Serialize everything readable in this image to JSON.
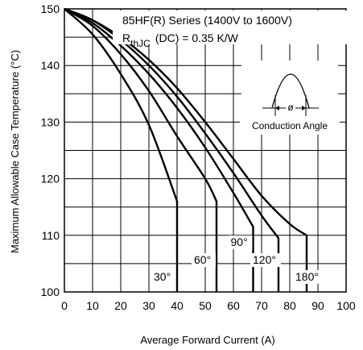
{
  "chart_data": {
    "type": "line",
    "title_line1": "85HF(R) Series (1400V to 1600V)",
    "title_line2_main": "R",
    "title_line2_sub": "thJC",
    "title_line2_rest": "(DC) = 0.35 K/W",
    "xlabel": "Average Forward Current (A)",
    "ylabel": "Maximum Allowable Case Temperature (°C)",
    "xlim": [
      0,
      100
    ],
    "ylim": [
      100,
      150
    ],
    "xticks": [
      "0",
      "10",
      "20",
      "30",
      "40",
      "50",
      "60",
      "70",
      "80",
      "90",
      "100"
    ],
    "yticks": [
      "100",
      "110",
      "120",
      "130",
      "140",
      "150"
    ],
    "grid": true,
    "inset_label": "Conduction Angle",
    "inset_symbol": "ø",
    "series": [
      {
        "name": "30°",
        "points": [
          [
            0,
            150
          ],
          [
            10,
            145.5
          ],
          [
            20,
            138.5
          ],
          [
            30,
            129.5
          ],
          [
            40,
            116
          ]
        ],
        "drop_to": 100
      },
      {
        "name": "60°",
        "points": [
          [
            0,
            150
          ],
          [
            10,
            147
          ],
          [
            20,
            142
          ],
          [
            30,
            135.5
          ],
          [
            40,
            127.5
          ],
          [
            50,
            120
          ],
          [
            54,
            116
          ]
        ],
        "drop_to": 100
      },
      {
        "name": "90°",
        "points": [
          [
            0,
            150
          ],
          [
            10,
            147.5
          ],
          [
            20,
            143.5
          ],
          [
            30,
            138.5
          ],
          [
            40,
            132.5
          ],
          [
            50,
            125.5
          ],
          [
            60,
            117.5
          ],
          [
            67,
            111.5
          ]
        ],
        "drop_to": 100
      },
      {
        "name": "120°",
        "points": [
          [
            0,
            150
          ],
          [
            10,
            148
          ],
          [
            20,
            144.5
          ],
          [
            30,
            140
          ],
          [
            40,
            134.5
          ],
          [
            50,
            128
          ],
          [
            60,
            121
          ],
          [
            70,
            113.5
          ],
          [
            76,
            109.5
          ]
        ],
        "drop_to": 100
      },
      {
        "name": "180°",
        "points": [
          [
            0,
            150
          ],
          [
            10,
            148
          ],
          [
            20,
            145
          ],
          [
            30,
            141
          ],
          [
            40,
            136
          ],
          [
            50,
            130
          ],
          [
            60,
            123.5
          ],
          [
            70,
            117
          ],
          [
            80,
            112
          ],
          [
            86,
            110
          ]
        ],
        "drop_to": 100
      }
    ]
  }
}
